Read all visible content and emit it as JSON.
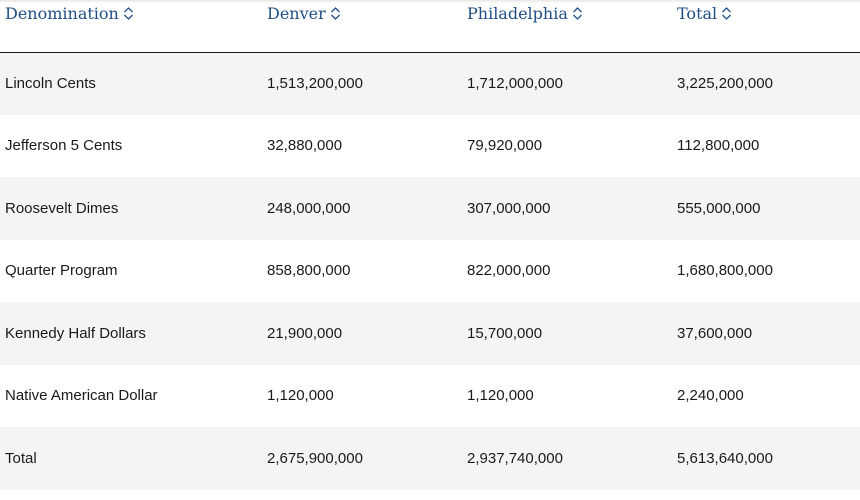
{
  "table": {
    "headers": [
      {
        "label": "Denomination"
      },
      {
        "label": "Denver"
      },
      {
        "label": "Philadelphia"
      },
      {
        "label": "Total"
      }
    ],
    "rows": [
      [
        "Lincoln Cents",
        "1,513,200,000",
        "1,712,000,000",
        "3,225,200,000"
      ],
      [
        "Jefferson 5 Cents",
        "32,880,000",
        "79,920,000",
        "112,800,000"
      ],
      [
        "Roosevelt Dimes",
        "248,000,000",
        "307,000,000",
        "555,000,000"
      ],
      [
        "Quarter Program",
        "858,800,000",
        "822,000,000",
        "1,680,800,000"
      ],
      [
        "Kennedy Half Dollars",
        "21,900,000",
        "15,700,000",
        "37,600,000"
      ],
      [
        "Native American Dollar",
        "1,120,000",
        "1,120,000",
        "2,240,000"
      ],
      [
        "Total",
        "2,675,900,000",
        "2,937,740,000",
        "5,613,640,000"
      ]
    ]
  },
  "icons": {
    "sort": "sort-up-down-icon"
  },
  "colors": {
    "header_text": "#1f4e86",
    "stripe": "#f4f4f4",
    "header_rule": "#1a1a1a"
  }
}
